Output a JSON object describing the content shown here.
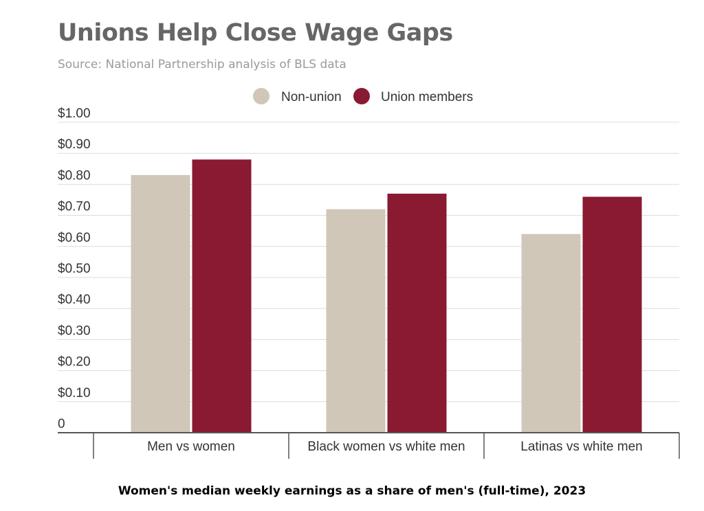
{
  "chart_data": {
    "type": "bar",
    "title": "Unions Help Close Wage Gaps",
    "subtitle": "Source: National Partnership analysis of BLS data",
    "xlabel": "Women's median weekly earnings as a share of men's (full-time), 2023",
    "ylabel": "",
    "categories": [
      "Men vs women",
      "Black women vs white men",
      "Latinas vs white men"
    ],
    "series": [
      {
        "name": "Non-union",
        "color": "#d0c7b9",
        "values": [
          0.83,
          0.72,
          0.64
        ]
      },
      {
        "name": "Union members",
        "color": "#8a1a31",
        "values": [
          0.88,
          0.77,
          0.76
        ]
      }
    ],
    "ylim": [
      0,
      1.0
    ],
    "yticks": [
      {
        "value": 0,
        "label": "0"
      },
      {
        "value": 0.1,
        "label": "$0.10"
      },
      {
        "value": 0.2,
        "label": "$0.20"
      },
      {
        "value": 0.3,
        "label": "$0.30"
      },
      {
        "value": 0.4,
        "label": "$0.40"
      },
      {
        "value": 0.5,
        "label": "$0.50"
      },
      {
        "value": 0.6,
        "label": "$0.60"
      },
      {
        "value": 0.7,
        "label": "$0.70"
      },
      {
        "value": 0.8,
        "label": "$0.80"
      },
      {
        "value": 0.9,
        "label": "$0.90"
      },
      {
        "value": 1.0,
        "label": "$1.00"
      }
    ],
    "grid": true,
    "legend": "top-center"
  }
}
